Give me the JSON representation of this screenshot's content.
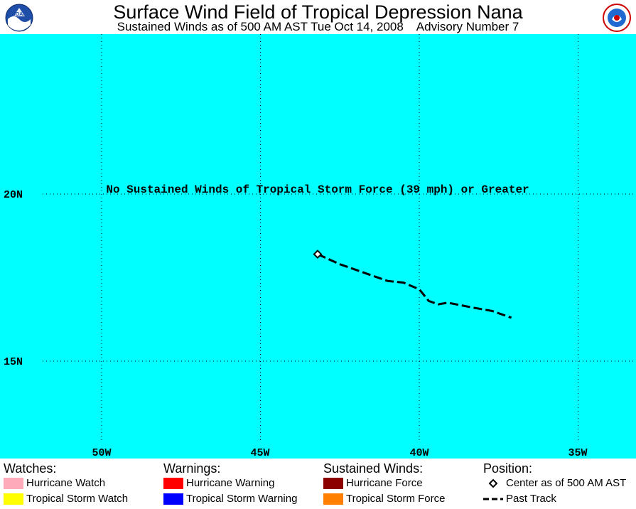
{
  "header": {
    "title": "Surface Wind Field of Tropical Depression Nana",
    "subtitle": "Sustained Winds as of 500 AM AST Tue Oct 14, 2008    Advisory Number 7",
    "left_logo": "NOAA",
    "right_logo": "National Weather Service"
  },
  "map": {
    "background_color": "#00ffff",
    "message": "No Sustained Winds of Tropical Storm Force (39 mph) or Greater",
    "lat_labels": [
      "20N",
      "15N"
    ],
    "lon_labels": [
      "50W",
      "45W",
      "40W",
      "35W"
    ],
    "lat_lines": [
      20,
      15
    ],
    "lon_lines": [
      -50,
      -45,
      -40,
      -35
    ],
    "center": {
      "lon": -43.2,
      "lat": 18.2
    },
    "past_track": [
      {
        "lon": -43.2,
        "lat": 18.2
      },
      {
        "lon": -42.5,
        "lat": 17.9
      },
      {
        "lon": -41.6,
        "lat": 17.6
      },
      {
        "lon": -41.0,
        "lat": 17.4
      },
      {
        "lon": -40.5,
        "lat": 17.35
      },
      {
        "lon": -40.0,
        "lat": 17.15
      },
      {
        "lon": -39.7,
        "lat": 16.8
      },
      {
        "lon": -39.4,
        "lat": 16.7
      },
      {
        "lon": -39.1,
        "lat": 16.75
      },
      {
        "lon": -38.3,
        "lat": 16.6
      },
      {
        "lon": -37.7,
        "lat": 16.5
      },
      {
        "lon": -37.1,
        "lat": 16.3
      }
    ]
  },
  "legend": {
    "watches": {
      "heading": "Watches:",
      "items": [
        {
          "label": "Hurricane Watch",
          "color": "#ffaabb"
        },
        {
          "label": "Tropical Storm Watch",
          "color": "#ffff00"
        }
      ]
    },
    "warnings": {
      "heading": "Warnings:",
      "items": [
        {
          "label": "Hurricane Warning",
          "color": "#ff0000"
        },
        {
          "label": "Tropical Storm Warning",
          "color": "#0000ff"
        }
      ]
    },
    "winds": {
      "heading": "Sustained Winds:",
      "items": [
        {
          "label": "Hurricane Force",
          "color": "#8b0000"
        },
        {
          "label": "Tropical Storm Force",
          "color": "#ff8000"
        }
      ]
    },
    "position": {
      "heading": "Position:",
      "items": [
        {
          "label": "Center as of 500 AM AST",
          "icon": "diamond-icon"
        },
        {
          "label": "Past Track",
          "icon": "dashed-line-icon"
        }
      ]
    }
  }
}
